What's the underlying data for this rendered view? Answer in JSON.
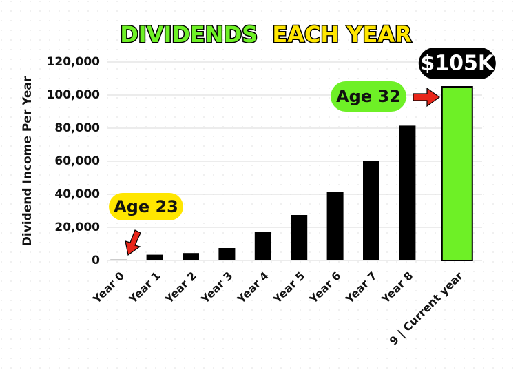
{
  "chart_data": {
    "type": "bar",
    "title": [
      "DIVIDENDS",
      "EACH YEAR"
    ],
    "title_colors": [
      "#6ef026",
      "#ffe600"
    ],
    "y_label": "Dividend Income Per Year",
    "categories": [
      "Year 0",
      "Year 1",
      "Year 2",
      "Year 3",
      "Year 4",
      "Year 5",
      "Year 6",
      "Year 7",
      "Year 8",
      "9 | Current year"
    ],
    "values": [
      500,
      3500,
      4500,
      7500,
      17500,
      27500,
      41500,
      60000,
      81500,
      105000
    ],
    "value_labels": [
      null,
      null,
      null,
      null,
      null,
      null,
      null,
      null,
      null,
      "$105K"
    ],
    "colors": [
      "#000000",
      "#000000",
      "#000000",
      "#000000",
      "#000000",
      "#000000",
      "#000000",
      "#000000",
      "#000000",
      "#6ef026"
    ],
    "annotations": [
      "Age 23",
      "Age 32"
    ],
    "ylim": [
      0,
      120000
    ],
    "yticks": [
      0,
      {
        "value": 20000,
        "label": "20,000"
      },
      {
        "value": 40000,
        "label": "40,000"
      },
      {
        "value": 60000,
        "label": "60,000"
      },
      {
        "value": 80000,
        "label": "80,000"
      },
      {
        "value": 100000,
        "label": "100,000"
      },
      {
        "value": 120000,
        "label": "120,000"
      }
    ],
    "grid": true
  }
}
